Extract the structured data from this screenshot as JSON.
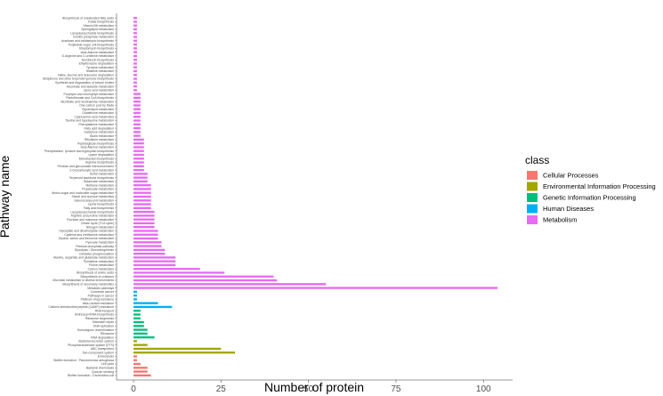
{
  "chart_data": {
    "type": "bar",
    "orientation": "horizontal",
    "xlabel": "Number of protein",
    "ylabel": "Pathway name",
    "xlim": [
      0,
      105
    ],
    "xticks": [
      0,
      25,
      50,
      75,
      100
    ],
    "grid": false,
    "legend_placement": "right",
    "legend": {
      "title": "class",
      "entries": [
        {
          "name": "Cellular Processes",
          "color": "#F8766D"
        },
        {
          "name": "Environmental Information Processing",
          "color": "#A3A500"
        },
        {
          "name": "Genetic Information Processing",
          "color": "#00BF7D"
        },
        {
          "name": "Human Diseases",
          "color": "#00B0F6"
        },
        {
          "name": "Metabolism",
          "color": "#E76BF3"
        }
      ]
    },
    "bars": [
      {
        "name": "Biosynthesis of unsaturated fatty acids",
        "value": 1,
        "class": 4
      },
      {
        "name": "Folate biosynthesis",
        "value": 1,
        "class": 4
      },
      {
        "name": "Vitamin B6 metabolism",
        "value": 1,
        "class": 4
      },
      {
        "name": "Sphingolipid metabolism",
        "value": 1,
        "class": 4
      },
      {
        "name": "Lipopolysaccharide biosynthesis",
        "value": 1,
        "class": 4
      },
      {
        "name": "Inositol phosphate metabolism",
        "value": 1,
        "class": 4
      },
      {
        "name": "Acarbose and validamycin biosynthesis",
        "value": 1,
        "class": 4
      },
      {
        "name": "Polyketide sugar unit biosynthesis",
        "value": 1,
        "class": 4
      },
      {
        "name": "Streptomycin biosynthesis",
        "value": 1,
        "class": 4
      },
      {
        "name": "beta-Alanine metabolism",
        "value": 1,
        "class": 4
      },
      {
        "name": "D-Arginine and D-ornithine metabolism",
        "value": 1,
        "class": 4
      },
      {
        "name": "Novobiocin biosynthesis",
        "value": 1,
        "class": 4
      },
      {
        "name": "Ethylbenzene degradation",
        "value": 1,
        "class": 4
      },
      {
        "name": "Tyrosine metabolism",
        "value": 1,
        "class": 4
      },
      {
        "name": "Histidine metabolism",
        "value": 1,
        "class": 4
      },
      {
        "name": "Valine, leucine and isoleucine degradation",
        "value": 1,
        "class": 4
      },
      {
        "name": "Ubiquinone and other terpenoid-quinone biosynthesis",
        "value": 1,
        "class": 4
      },
      {
        "name": "Synthesis and degradation of ketone bodies",
        "value": 1,
        "class": 4
      },
      {
        "name": "Ascorbate and aldarate metabolism",
        "value": 1,
        "class": 4
      },
      {
        "name": "Lipoic acid metabolism",
        "value": 1,
        "class": 4
      },
      {
        "name": "Porphyrin and chlorophyll metabolism",
        "value": 2,
        "class": 4
      },
      {
        "name": "Pantothenate and CoA biosynthesis",
        "value": 2,
        "class": 4
      },
      {
        "name": "Nicotinate and nicotinamide metabolism",
        "value": 2,
        "class": 4
      },
      {
        "name": "One carbon pool by folate",
        "value": 2,
        "class": 4
      },
      {
        "name": "Glycerolipid metabolism",
        "value": 2,
        "class": 4
      },
      {
        "name": "Glutathione metabolism",
        "value": 2,
        "class": 4
      },
      {
        "name": "Cyanoamino acid metabolism",
        "value": 2,
        "class": 4
      },
      {
        "name": "Taurine and hypotaurine metabolism",
        "value": 2,
        "class": 4
      },
      {
        "name": "Phenylalanine metabolism",
        "value": 2,
        "class": 4
      },
      {
        "name": "Fatty acid degradation",
        "value": 2,
        "class": 4
      },
      {
        "name": "Galactose metabolism",
        "value": 2,
        "class": 4
      },
      {
        "name": "Biotin metabolism",
        "value": 2,
        "class": 4
      },
      {
        "name": "Riboflavin metabolism",
        "value": 3,
        "class": 4
      },
      {
        "name": "Peptidoglycan biosynthesis",
        "value": 3,
        "class": 4
      },
      {
        "name": "beta-Alanine metabolism",
        "value": 3,
        "class": 4
      },
      {
        "name": "Phenylalanine, tyrosine and tryptophan biosynthesis",
        "value": 3,
        "class": 4
      },
      {
        "name": "Lysine degradation",
        "value": 3,
        "class": 4
      },
      {
        "name": "Monobactam biosynthesis",
        "value": 3,
        "class": 4
      },
      {
        "name": "Arginine biosynthesis",
        "value": 3,
        "class": 4
      },
      {
        "name": "Pentose and glucuronate interconversions",
        "value": 3,
        "class": 4
      },
      {
        "name": "2-Oxocarboxylic acid metabolism",
        "value": 3,
        "class": 4
      },
      {
        "name": "Sulfur metabolism",
        "value": 4,
        "class": 4
      },
      {
        "name": "Terpenoid backbone biosynthesis",
        "value": 4,
        "class": 4
      },
      {
        "name": "Butanoate metabolism",
        "value": 4,
        "class": 4
      },
      {
        "name": "Methane metabolism",
        "value": 5,
        "class": 4
      },
      {
        "name": "Propanoate metabolism",
        "value": 5,
        "class": 4
      },
      {
        "name": "Amino sugar and nucleotide sugar metabolism",
        "value": 5,
        "class": 4
      },
      {
        "name": "Starch and sucrose metabolism",
        "value": 5,
        "class": 4
      },
      {
        "name": "Selenocompound metabolism",
        "value": 5,
        "class": 4
      },
      {
        "name": "Lysine biosynthesis",
        "value": 5,
        "class": 4
      },
      {
        "name": "Fatty acid biosynthesis",
        "value": 5,
        "class": 4
      },
      {
        "name": "Lipopolysaccharide biosynthesis",
        "value": 6,
        "class": 4
      },
      {
        "name": "Arginine and proline metabolism",
        "value": 6,
        "class": 4
      },
      {
        "name": "Fructose and mannose metabolism",
        "value": 6,
        "class": 4
      },
      {
        "name": "Citrate cycle (TCA cycle)",
        "value": 6,
        "class": 4
      },
      {
        "name": "Nitrogen metabolism",
        "value": 6,
        "class": 4
      },
      {
        "name": "Glyoxylate and dicarboxylate metabolism",
        "value": 7,
        "class": 4
      },
      {
        "name": "Cysteine and methionine metabolism",
        "value": 7,
        "class": 4
      },
      {
        "name": "Glycine, serine and threonine metabolism",
        "value": 7,
        "class": 4
      },
      {
        "name": "Pyruvate metabolism",
        "value": 8,
        "class": 4
      },
      {
        "name": "Pentose phosphate pathway",
        "value": 8,
        "class": 4
      },
      {
        "name": "Glycolysis / Gluconeogenesis",
        "value": 9,
        "class": 4
      },
      {
        "name": "Oxidative phosphorylation",
        "value": 9,
        "class": 4
      },
      {
        "name": "Alanine, aspartate and glutamate metabolism",
        "value": 12,
        "class": 4
      },
      {
        "name": "Pyrimidine metabolism",
        "value": 12,
        "class": 4
      },
      {
        "name": "Purine metabolism",
        "value": 12,
        "class": 4
      },
      {
        "name": "Carbon metabolism",
        "value": 19,
        "class": 4
      },
      {
        "name": "Biosynthesis of amino acids",
        "value": 26,
        "class": 4
      },
      {
        "name": "Biosynthesis of cofactors",
        "value": 40,
        "class": 4
      },
      {
        "name": "Microbial metabolism in diverse environments",
        "value": 41,
        "class": 4
      },
      {
        "name": "Biosynthesis of secondary metabolites",
        "value": 55,
        "class": 4
      },
      {
        "name": "Metabolic pathways",
        "value": 104,
        "class": 4
      },
      {
        "name": "Colorectal cancer",
        "value": 1,
        "class": 3
      },
      {
        "name": "Pathways in cancer",
        "value": 1,
        "class": 3
      },
      {
        "name": "Platinum drug resistance",
        "value": 1,
        "class": 3
      },
      {
        "name": "beta-Lactam resistance",
        "value": 7,
        "class": 3
      },
      {
        "name": "Cationic antimicrobial peptide (CAMP) resistance",
        "value": 11,
        "class": 3
      },
      {
        "name": "RNA transport",
        "value": 2,
        "class": 2
      },
      {
        "name": "Aminoacyl-tRNA biosynthesis",
        "value": 2,
        "class": 2
      },
      {
        "name": "Ribosome biogenesis",
        "value": 2,
        "class": 2
      },
      {
        "name": "Mismatch repair",
        "value": 3,
        "class": 2
      },
      {
        "name": "DNA replication",
        "value": 3,
        "class": 2
      },
      {
        "name": "Homologous recombination",
        "value": 4,
        "class": 2
      },
      {
        "name": "Ribosome",
        "value": 4,
        "class": 2
      },
      {
        "name": "RNA degradation",
        "value": 6,
        "class": 2
      },
      {
        "name": "Bacterial secretion system",
        "value": 1,
        "class": 1
      },
      {
        "name": "Phosphotransferase system (PTS)",
        "value": 4,
        "class": 1
      },
      {
        "name": "ABC transporters",
        "value": 25,
        "class": 1
      },
      {
        "name": "Two-component system",
        "value": 29,
        "class": 1
      },
      {
        "name": "Endocytosis",
        "value": 1,
        "class": 0
      },
      {
        "name": "Biofilm formation - Pseudomonas aeruginosa",
        "value": 1,
        "class": 0
      },
      {
        "name": "Cell cycle",
        "value": 2,
        "class": 0
      },
      {
        "name": "Bacterial chemotaxis",
        "value": 4,
        "class": 0
      },
      {
        "name": "Quorum sensing",
        "value": 4,
        "class": 0
      },
      {
        "name": "Biofilm formation - Escherichia coli",
        "value": 5,
        "class": 0
      }
    ]
  }
}
